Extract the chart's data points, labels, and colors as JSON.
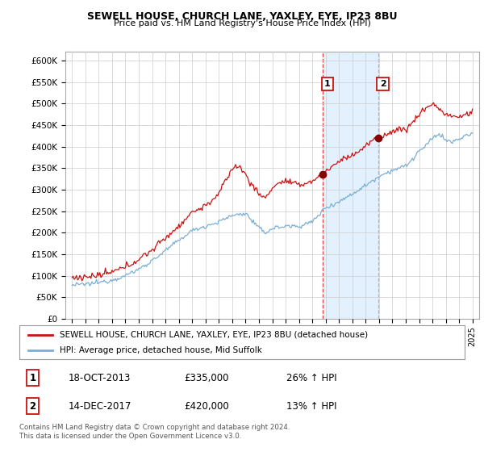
{
  "title1": "SEWELL HOUSE, CHURCH LANE, YAXLEY, EYE, IP23 8BU",
  "title2": "Price paid vs. HM Land Registry's House Price Index (HPI)",
  "ylabel_ticks": [
    "£0",
    "£50K",
    "£100K",
    "£150K",
    "£200K",
    "£250K",
    "£300K",
    "£350K",
    "£400K",
    "£450K",
    "£500K",
    "£550K",
    "£600K"
  ],
  "ytick_vals": [
    0,
    50000,
    100000,
    150000,
    200000,
    250000,
    300000,
    350000,
    400000,
    450000,
    500000,
    550000,
    600000
  ],
  "sale1_date": 2013.8,
  "sale1_price": 335000,
  "sale1_label": "1",
  "sale1_text": "18-OCT-2013",
  "sale1_amount": "£335,000",
  "sale1_hpi": "26% ↑ HPI",
  "sale2_date": 2017.95,
  "sale2_price": 420000,
  "sale2_label": "2",
  "sale2_text": "14-DEC-2017",
  "sale2_amount": "£420,000",
  "sale2_hpi": "13% ↑ HPI",
  "legend_line1": "SEWELL HOUSE, CHURCH LANE, YAXLEY, EYE, IP23 8BU (detached house)",
  "legend_line2": "HPI: Average price, detached house, Mid Suffolk",
  "footnote": "Contains HM Land Registry data © Crown copyright and database right 2024.\nThis data is licensed under the Open Government Licence v3.0.",
  "hpi_color": "#7bafd4",
  "price_color": "#cc1111",
  "shade_color": "#ddeeff",
  "grid_color": "#cccccc",
  "background_color": "#ffffff",
  "vline1_color": "#dd3333",
  "vline2_color": "#aaaacc"
}
